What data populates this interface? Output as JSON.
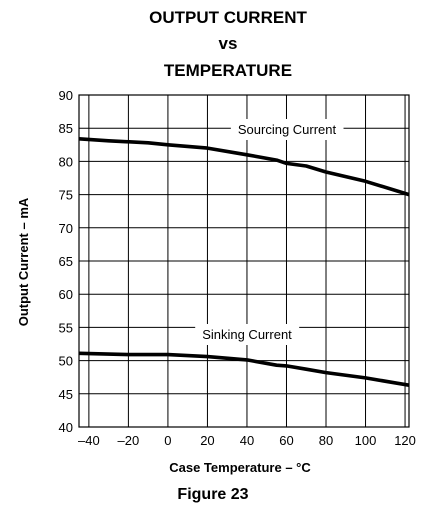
{
  "chart_data": {
    "type": "line",
    "title_lines": [
      "OUTPUT CURRENT",
      "vs",
      "TEMPERATURE"
    ],
    "xlabel": "Case Temperature – °C",
    "ylabel": "Output Current – mA",
    "xlim": [
      -45,
      122
    ],
    "ylim": [
      40,
      90
    ],
    "x_ticks": [
      -40,
      -20,
      0,
      20,
      40,
      60,
      80,
      100,
      120
    ],
    "x_tick_labels": [
      "–40",
      "–20",
      "0",
      "20",
      "40",
      "60",
      "80",
      "100",
      "120"
    ],
    "y_ticks": [
      40,
      45,
      50,
      55,
      60,
      65,
      70,
      75,
      80,
      85,
      90
    ],
    "y_tick_labels": [
      "40",
      "45",
      "50",
      "55",
      "60",
      "65",
      "70",
      "75",
      "80",
      "85",
      "90"
    ],
    "grid": true,
    "series": [
      {
        "name": "Sourcing Current",
        "x": [
          -45,
          -30,
          -10,
          0,
          20,
          40,
          55,
          60,
          70,
          80,
          100,
          122
        ],
        "y": [
          83.4,
          83.1,
          82.8,
          82.5,
          82.0,
          81.0,
          80.2,
          79.7,
          79.3,
          78.4,
          77.0,
          75.0
        ]
      },
      {
        "name": "Sinking Current",
        "x": [
          -45,
          -20,
          0,
          20,
          40,
          55,
          60,
          70,
          80,
          100,
          122
        ],
        "y": [
          51.1,
          50.9,
          50.9,
          50.6,
          50.1,
          49.3,
          49.2,
          48.7,
          48.2,
          47.4,
          46.3
        ]
      }
    ],
    "caption": "Figure 23"
  }
}
